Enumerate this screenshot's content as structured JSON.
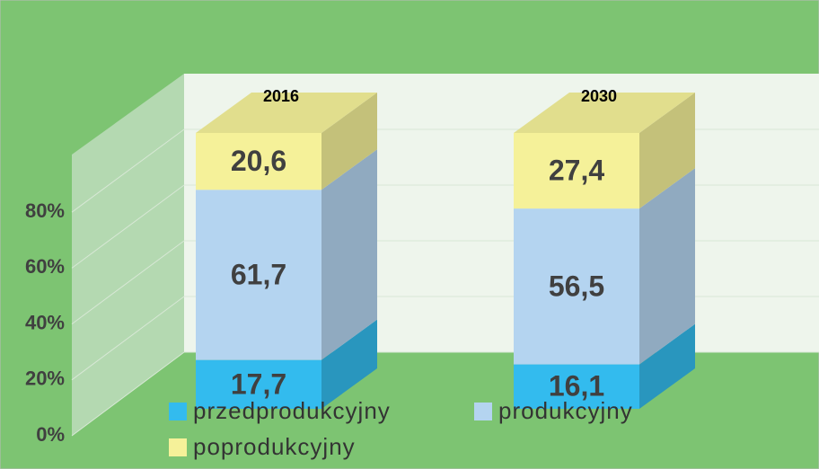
{
  "chart_data": {
    "type": "bar3d_stacked",
    "categories": [
      "2016",
      "2030"
    ],
    "series": [
      {
        "name": "przedprodukcyjny",
        "color": "#33bbee",
        "values": [
          17.7,
          16.1
        ],
        "value_labels": [
          "17,7",
          "16,1"
        ]
      },
      {
        "name": "produkcyjny",
        "color": "#b4d4f0",
        "values": [
          61.7,
          56.5
        ],
        "value_labels": [
          "61,7",
          "56,5"
        ]
      },
      {
        "name": "poprodukcyjny",
        "color": "#f5f199",
        "values": [
          20.6,
          27.4
        ],
        "value_labels": [
          "20,6",
          "27,4"
        ]
      }
    ],
    "ylim": [
      0,
      100
    ],
    "yticks": [
      {
        "value": 0,
        "label": "0%"
      },
      {
        "value": 20,
        "label": "20%"
      },
      {
        "value": 40,
        "label": "40%"
      },
      {
        "value": 60,
        "label": "60%"
      },
      {
        "value": 80,
        "label": "80%"
      }
    ],
    "grid": true
  }
}
